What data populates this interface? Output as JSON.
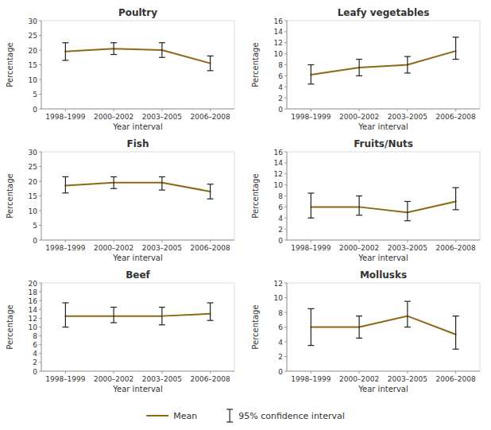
{
  "chart_data": [
    {
      "type": "line",
      "title": "Poultry",
      "y_label": "Percentage",
      "x_label": "Year interval",
      "categories": [
        "1998–1999",
        "2000–2002",
        "2003–2005",
        "2006–2008"
      ],
      "ylim": [
        0,
        30
      ],
      "yticks": [
        0,
        5,
        10,
        15,
        20,
        25,
        30
      ],
      "series": [
        {
          "name": "Mean",
          "color": "#8B6914",
          "values": [
            19.5,
            20.5,
            20.0,
            15.5
          ],
          "ci_name": "95% confidence interval",
          "ci_low": [
            16.5,
            18.5,
            17.5,
            13.0
          ],
          "ci_high": [
            22.5,
            22.5,
            22.5,
            18.0
          ]
        }
      ]
    },
    {
      "type": "line",
      "title": "Leafy vegetables",
      "y_label": "Percentage",
      "x_label": "Year interval",
      "categories": [
        "1998–1999",
        "2000–2002",
        "2003–2005",
        "2006–2008"
      ],
      "ylim": [
        0,
        16
      ],
      "yticks": [
        0,
        2,
        4,
        6,
        8,
        10,
        12,
        14,
        16
      ],
      "series": [
        {
          "name": "Mean",
          "color": "#8B6914",
          "values": [
            6.2,
            7.5,
            8.0,
            10.5
          ],
          "ci_name": "95% confidence interval",
          "ci_low": [
            4.5,
            6.0,
            6.5,
            9.0
          ],
          "ci_high": [
            8.0,
            9.0,
            9.5,
            13.0
          ]
        }
      ]
    },
    {
      "type": "line",
      "title": "Fish",
      "y_label": "Percentage",
      "x_label": "Year interval",
      "categories": [
        "1998–1999",
        "2000–2002",
        "2003–2005",
        "2006–2008"
      ],
      "ylim": [
        0,
        30
      ],
      "yticks": [
        0,
        5,
        10,
        15,
        20,
        25,
        30
      ],
      "series": [
        {
          "name": "Mean",
          "color": "#8B6914",
          "values": [
            18.5,
            19.5,
            19.5,
            16.5
          ],
          "ci_name": "95% confidence interval",
          "ci_low": [
            16.0,
            17.5,
            17.0,
            14.0
          ],
          "ci_high": [
            21.5,
            21.5,
            21.5,
            19.0
          ]
        }
      ]
    },
    {
      "type": "line",
      "title": "Fruits/Nuts",
      "y_label": "Percentage",
      "x_label": "Year interval",
      "categories": [
        "1998–1999",
        "2000–2002",
        "2003–2005",
        "2006–2008"
      ],
      "ylim": [
        0,
        16
      ],
      "yticks": [
        0,
        2,
        4,
        6,
        8,
        10,
        12,
        14,
        16
      ],
      "series": [
        {
          "name": "Mean",
          "color": "#8B6914",
          "values": [
            6.0,
            6.0,
            5.0,
            7.0
          ],
          "ci_name": "95% confidence interval",
          "ci_low": [
            4.0,
            4.5,
            3.5,
            5.5
          ],
          "ci_high": [
            8.5,
            8.0,
            7.0,
            9.5
          ]
        }
      ]
    },
    {
      "type": "line",
      "title": "Beef",
      "y_label": "Percentage",
      "x_label": "Year interval",
      "categories": [
        "1998–1999",
        "2000–2002",
        "2003–2005",
        "2006–2008"
      ],
      "ylim": [
        0,
        20
      ],
      "yticks": [
        0,
        2,
        4,
        6,
        8,
        10,
        12,
        14,
        16,
        18,
        20
      ],
      "series": [
        {
          "name": "Mean",
          "color": "#8B6914",
          "values": [
            12.5,
            12.5,
            12.5,
            13.0
          ],
          "ci_name": "95% confidence interval",
          "ci_low": [
            10.0,
            11.0,
            10.5,
            11.5
          ],
          "ci_high": [
            15.5,
            14.5,
            14.5,
            15.5
          ]
        }
      ]
    },
    {
      "type": "line",
      "title": "Mollusks",
      "y_label": "Percentage",
      "x_label": "Year interval",
      "categories": [
        "1998–1999",
        "2000–2002",
        "2003–2005",
        "2006–2008"
      ],
      "ylim": [
        0,
        12
      ],
      "yticks": [
        0,
        2,
        4,
        6,
        8,
        10,
        12
      ],
      "series": [
        {
          "name": "Mean",
          "color": "#8B6914",
          "values": [
            6.0,
            6.0,
            7.5,
            5.0
          ],
          "ci_name": "95% confidence interval",
          "ci_low": [
            3.5,
            4.5,
            6.0,
            3.0
          ],
          "ci_high": [
            8.5,
            7.5,
            9.5,
            7.5
          ]
        }
      ]
    }
  ]
}
